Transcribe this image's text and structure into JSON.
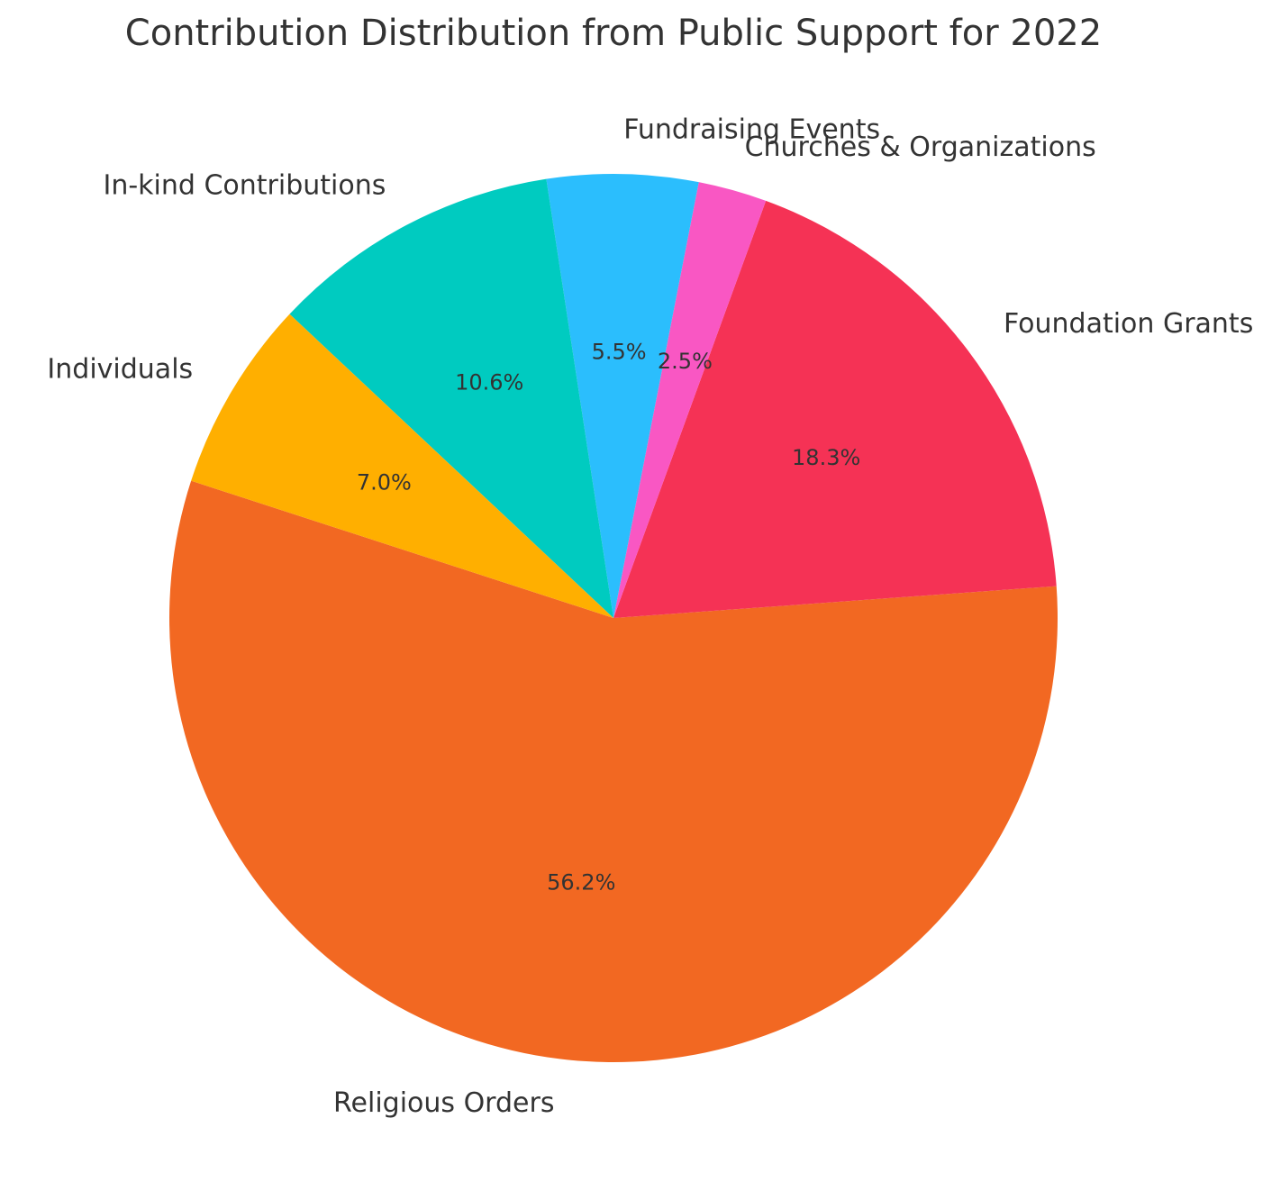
{
  "chart_data": {
    "type": "pie",
    "title": "Contribution Distribution from Public Support for 2022",
    "value_format": "percent_one_decimal",
    "start_angle_deg": 162,
    "direction": "counterclockwise",
    "slices": [
      {
        "label": "Religious Orders",
        "value": 56.2,
        "pct_text": "56.2%",
        "color": "#F26822"
      },
      {
        "label": "Foundation Grants",
        "value": 18.3,
        "pct_text": "18.3%",
        "color": "#F53255"
      },
      {
        "label": "Churches & Organizations",
        "value": 2.5,
        "pct_text": "2.5%",
        "color": "#F957C3"
      },
      {
        "label": "Fundraising Events",
        "value": 5.5,
        "pct_text": "5.5%",
        "color": "#2BBEFD"
      },
      {
        "label": "In-kind Contributions",
        "value": 10.6,
        "pct_text": "10.6%",
        "color": "#00CBC0"
      },
      {
        "label": "Individuals",
        "value": 7.0,
        "pct_text": "7.0%",
        "color": "#FFAF00"
      }
    ]
  }
}
